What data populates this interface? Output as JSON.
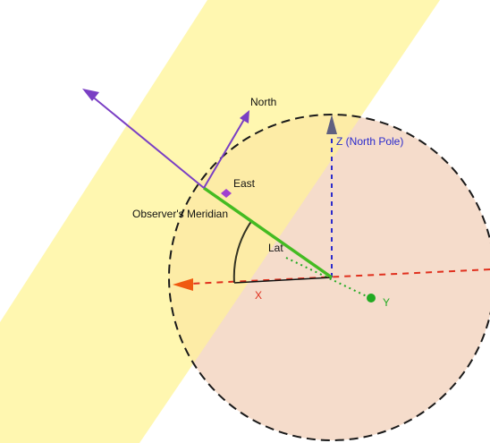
{
  "labels": {
    "north": "North",
    "east": "East",
    "meridian": "Observer's Meridian",
    "lat": "Lat",
    "x_axis": "X",
    "y_axis": "Y",
    "z_axis": "Z (North Pole)"
  },
  "colors": {
    "background": "#ffffff",
    "sphere_fill": "#f5dccb",
    "sunlight_band": "#fff59a",
    "sphere_outline": "#1a1a1a",
    "x_axis": "#e0301e",
    "y_axis": "#22aa22",
    "z_axis": "#2a2acc",
    "z_arrowhead": "#606080",
    "x_arrowhead": "#f05a10",
    "meridian_line": "#44bb22",
    "north_arrow": "#7a3fc4",
    "east_marker": "#a03fd0",
    "lat_arc": "#333322",
    "label_text": "#111111"
  }
}
